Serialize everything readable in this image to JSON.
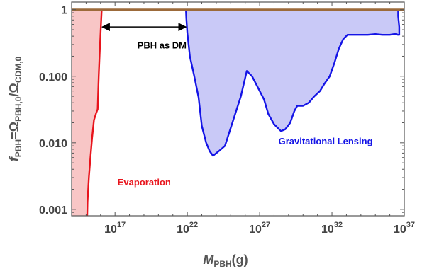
{
  "chart_data": {
    "type": "area",
    "title": "",
    "xlabel": {
      "main": "M",
      "sub": "PBH",
      "unit": "(g)"
    },
    "ylabel": {
      "main": "f",
      "sub": "PBH",
      "eq": "=Ω",
      "sub2": "PBH,0",
      "slash": "/Ω",
      "sub3": "CDM,0"
    },
    "x_scale": "log10",
    "y_scale": "log10",
    "xlim": [
      100000000000000.0,
      1e+37
    ],
    "ylim": [
      0.0008,
      1.3
    ],
    "x_ticks": [
      {
        "base": "10",
        "exp": "17",
        "value": 1e+17
      },
      {
        "base": "10",
        "exp": "22",
        "value": 1e+22
      },
      {
        "base": "10",
        "exp": "27",
        "value": 1e+27
      },
      {
        "base": "10",
        "exp": "32",
        "value": 1e+32
      },
      {
        "base": "10",
        "exp": "37",
        "value": 1e+37
      }
    ],
    "y_ticks": [
      {
        "label": "0.001",
        "value": 0.001
      },
      {
        "label": "0.010",
        "value": 0.01
      },
      {
        "label": "0.100",
        "value": 0.1
      },
      {
        "label": "1",
        "value": 1
      }
    ],
    "grid": false,
    "series": [
      {
        "name": "Evaporation",
        "color": "#e8141c",
        "fill": "#f8c6c6",
        "fill_side": "left",
        "points": [
          [
            1200000000000000.0,
            0.0008
          ],
          [
            1250000000000000.0,
            0.0013
          ],
          [
            1550000000000000.0,
            0.003
          ],
          [
            2000000000000000.0,
            0.006
          ],
          [
            2600000000000000.0,
            0.012
          ],
          [
            3500000000000000.0,
            0.022
          ],
          [
            5000000000000000.0,
            0.028
          ],
          [
            6300000000000000.0,
            0.032
          ],
          [
            7500000000000000.0,
            0.1
          ],
          [
            9000000000000000.0,
            0.26
          ],
          [
            1.05e+16,
            0.55
          ],
          [
            1.2e+16,
            1.0
          ]
        ]
      },
      {
        "name": "Gravitational Lensing",
        "color": "#1414e6",
        "fill": "#c9c9f7",
        "fill_side": "top",
        "points": [
          [
            8e+21,
            1.0
          ],
          [
            8.5e+21,
            0.75
          ],
          [
            1e+22,
            0.45
          ],
          [
            1.5e+22,
            0.2
          ],
          [
            3e+22,
            0.1
          ],
          [
            6e+22,
            0.048
          ],
          [
            1e+23,
            0.018
          ],
          [
            2e+23,
            0.01
          ],
          [
            3.5e+23,
            0.0075
          ],
          [
            6e+23,
            0.0064
          ],
          [
            1.5e+24,
            0.0075
          ],
          [
            4e+24,
            0.009
          ],
          [
            1.5e+25,
            0.022
          ],
          [
            5e+25,
            0.05
          ],
          [
            1.3e+26,
            0.12
          ],
          [
            3e+26,
            0.1
          ],
          [
            7e+26,
            0.07
          ],
          [
            2e+27,
            0.045
          ],
          [
            4e+27,
            0.027
          ],
          [
            1e+28,
            0.019
          ],
          [
            3e+28,
            0.015
          ],
          [
            6e+28,
            0.016
          ],
          [
            1.3e+29,
            0.02
          ],
          [
            2.5e+29,
            0.03
          ],
          [
            4e+29,
            0.036
          ],
          [
            1e+30,
            0.036
          ],
          [
            2.5e+30,
            0.04
          ],
          [
            6e+30,
            0.05
          ],
          [
            1.5e+31,
            0.06
          ],
          [
            3e+31,
            0.077
          ],
          [
            7e+31,
            0.1
          ],
          [
            1.5e+32,
            0.16
          ],
          [
            3e+32,
            0.26
          ],
          [
            6e+32,
            0.36
          ],
          [
            1.2e+33,
            0.42
          ],
          [
            1e+34,
            0.42
          ],
          [
            3e+34,
            0.42
          ],
          [
            1e+35,
            0.43
          ],
          [
            3e+35,
            0.42
          ],
          [
            1e+36,
            0.42
          ],
          [
            2e+36,
            0.43
          ],
          [
            3e+36,
            0.43
          ],
          [
            3.5e+36,
            0.42
          ],
          [
            4.5e+36,
            0.42
          ],
          [
            4.5e+36,
            0.55
          ],
          [
            3.8e+36,
            0.8
          ],
          [
            3.8e+36,
            1.0
          ]
        ]
      }
    ],
    "reference_line": {
      "y": 1,
      "color": "#9c6a3a"
    },
    "annotations": [
      {
        "text": "PBH as DM",
        "color": "#000000",
        "x_from": 1.3e+16,
        "x_to": 8e+21,
        "y": 0.55,
        "label_x": 3.5e+18,
        "label_y": 0.26,
        "arrow": "double"
      },
      {
        "text": "Gravitational Lensing",
        "color": "#1414e6",
        "label_x": 2e+28,
        "label_y": 0.0095
      },
      {
        "text": "Evaporation",
        "color": "#e8141c",
        "label_x": 1.5e+17,
        "label_y": 0.0023
      }
    ]
  }
}
